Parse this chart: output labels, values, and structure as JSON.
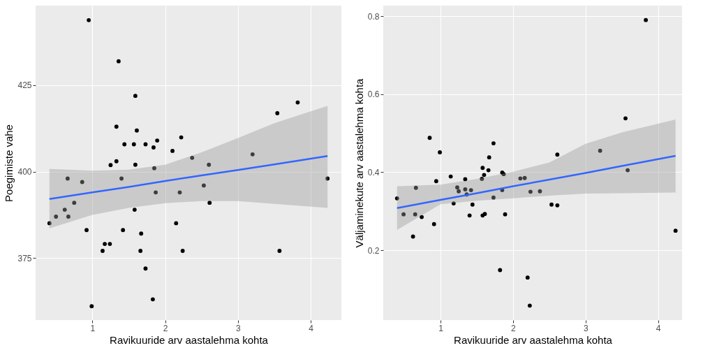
{
  "chart_data": [
    {
      "type": "scatter",
      "xlabel": "Ravikuuride arv aastalehma kohta",
      "ylabel": "Poegimiste vahe",
      "xlim": [
        0.22,
        4.42
      ],
      "ylim": [
        357.1,
        448
      ],
      "xticks": [
        1,
        2,
        3,
        4
      ],
      "yticks": [
        375,
        400,
        425
      ],
      "grid": true,
      "series": [
        {
          "marker": "circle",
          "color": "#000000",
          "x": [
            0.95,
            1.36,
            1.59,
            1.33,
            1.61,
            1.44,
            1.57,
            1.73,
            1.89,
            1.84,
            2.1,
            2.22,
            2.37,
            2.6,
            3.2,
            3.54,
            3.82,
            1.25,
            1.33,
            1.59,
            1.85,
            0.66,
            0.86,
            1.4,
            1.87,
            2.2,
            2.53,
            4.23,
            2.61,
            0.75,
            0.62,
            0.5,
            0.67,
            0.41,
            1.58,
            2.15,
            0.92,
            1.42,
            1.67,
            1.17,
            1.24,
            1.14,
            1.66,
            2.24,
            3.57,
            1.73,
            1.83,
            0.99
          ],
          "values": [
            443.8,
            431.9,
            421.9,
            413,
            411.9,
            407.9,
            407.9,
            407.9,
            409,
            407,
            406,
            409.9,
            404,
            402,
            405,
            416.9,
            420,
            401.9,
            403,
            402,
            401,
            398,
            397,
            398,
            394,
            394,
            396,
            398,
            391,
            391,
            389,
            387,
            387,
            385.1,
            389,
            385.1,
            383.1,
            383.1,
            382.1,
            379.1,
            379.1,
            377.1,
            377.1,
            377.1,
            377.1,
            372,
            363.1,
            361.1
          ]
        },
        {
          "type": "line",
          "marker": "none",
          "line_style": "solid",
          "color": "#3366ff",
          "x": [
            0.41,
            1,
            1.5,
            2,
            2.5,
            3,
            3.5,
            4.23
          ],
          "values": [
            392.1,
            394,
            395.6,
            397.3,
            398.9,
            400.5,
            402.1,
            404.5
          ],
          "lower": [
            383.6,
            387.5,
            389.5,
            390.9,
            391.5,
            391.5,
            390.7,
            389.5
          ],
          "upper": [
            400.8,
            400.3,
            400.6,
            402,
            405.6,
            409.7,
            414,
            419
          ]
        }
      ]
    },
    {
      "type": "scatter",
      "xlabel": "Ravikuuride arv aastalehma kohta",
      "ylabel": "Väljaminekute arv aastalehma kohta",
      "xlim": [
        0.21,
        4.33
      ],
      "ylim": [
        0.021,
        0.827
      ],
      "xticks": [
        1,
        2,
        3,
        4
      ],
      "yticks": [
        0.2,
        0.4,
        0.6,
        0.8
      ],
      "grid": true,
      "series": [
        {
          "marker": "circle",
          "color": "#000000",
          "x": [
            3.83,
            3.55,
            0.85,
            0.99,
            1.73,
            1.67,
            2.61,
            3.2,
            1.58,
            3.58,
            1.66,
            1.6,
            1.57,
            1.85,
            1.87,
            1.85,
            2.1,
            2.16,
            2.24,
            2.37,
            2.53,
            2.61,
            4.24,
            1.14,
            0.94,
            1.34,
            1.23,
            1.25,
            1.34,
            1.36,
            1.42,
            1.18,
            1.44,
            1.73,
            1.4,
            1.58,
            1.61,
            1.89,
            0.66,
            0.4,
            0.49,
            0.65,
            0.74,
            0.91,
            0.62,
            1.82,
            2.2,
            2.23
          ],
          "values": [
            0.79,
            0.538,
            0.488,
            0.451,
            0.474,
            0.438,
            0.445,
            0.455,
            0.411,
            0.405,
            0.405,
            0.393,
            0.383,
            0.399,
            0.395,
            0.354,
            0.384,
            0.385,
            0.35,
            0.351,
            0.317,
            0.315,
            0.25,
            0.389,
            0.377,
            0.382,
            0.361,
            0.351,
            0.356,
            0.343,
            0.354,
            0.32,
            0.317,
            0.335,
            0.289,
            0.289,
            0.293,
            0.292,
            0.36,
            0.333,
            0.292,
            0.292,
            0.285,
            0.267,
            0.235,
            0.149,
            0.13,
            0.058
          ]
        },
        {
          "type": "line",
          "marker": "none",
          "line_style": "solid",
          "color": "#3366ff",
          "x": [
            0.4,
            1,
            1.5,
            2,
            2.5,
            3,
            3.5,
            4.24
          ],
          "values": [
            0.308,
            0.329,
            0.346,
            0.364,
            0.381,
            0.398,
            0.416,
            0.442
          ],
          "lower": [
            0.252,
            0.318,
            0.327,
            0.333,
            0.34,
            0.345,
            0.346,
            0.348
          ],
          "upper": [
            0.364,
            0.368,
            0.383,
            0.401,
            0.425,
            0.473,
            0.502,
            0.535
          ]
        }
      ]
    }
  ]
}
